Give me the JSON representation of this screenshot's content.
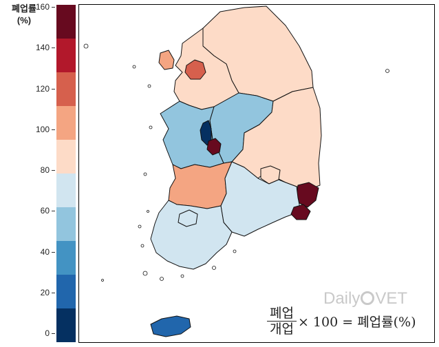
{
  "legend": {
    "title_line1": "폐업률",
    "title_line2": "(%)",
    "ticks": [
      "160",
      "140",
      "120",
      "100",
      "80",
      "60",
      "40",
      "20",
      "0"
    ],
    "colors": [
      "#670a1f",
      "#b2182b",
      "#d6604d",
      "#f4a582",
      "#fddbc7",
      "#d1e5f0",
      "#92c5de",
      "#4393c3",
      "#2166ac",
      "#053061"
    ]
  },
  "formula": {
    "numerator": "폐업",
    "denominator": "개업",
    "rest": "× 100 = 폐업률(%)"
  },
  "logo": {
    "text_daily": "Daily",
    "text_vet": "VET"
  },
  "regions": [
    {
      "name": "경기",
      "color": "#fddbc7"
    },
    {
      "name": "강원",
      "color": "#fddbc7"
    },
    {
      "name": "인천",
      "color": "#f4a582"
    },
    {
      "name": "서울",
      "color": "#d6604d"
    },
    {
      "name": "충북",
      "color": "#92c5de"
    },
    {
      "name": "충남",
      "color": "#92c5de"
    },
    {
      "name": "세종",
      "color": "#053061"
    },
    {
      "name": "대전",
      "color": "#670a1f"
    },
    {
      "name": "경북",
      "color": "#fddbc7"
    },
    {
      "name": "전북",
      "color": "#f4a582"
    },
    {
      "name": "경남",
      "color": "#d1e5f0"
    },
    {
      "name": "전남",
      "color": "#d1e5f0"
    },
    {
      "name": "광주",
      "color": "#d1e5f0"
    },
    {
      "name": "대구",
      "color": "#fddbc7"
    },
    {
      "name": "울산",
      "color": "#670a1f"
    },
    {
      "name": "부산",
      "color": "#670a1f"
    },
    {
      "name": "제주",
      "color": "#2166ac"
    }
  ]
}
